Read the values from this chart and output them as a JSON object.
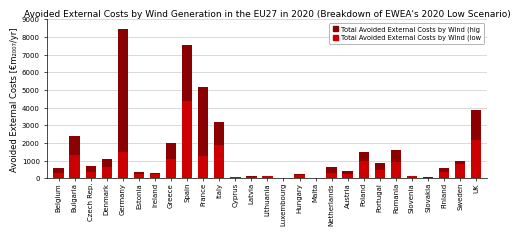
{
  "title": "Avoided External Costs by Wind Generation in the EU27 in 2020 (Breakdown of EWEA's 2020 Low Scenario)",
  "ylabel": "Avoided External Costs [€m₂₀₀₇/yr]",
  "countries": [
    "Belgium",
    "Bulgaria",
    "Czech Rep.",
    "Denmark",
    "Germany",
    "Estonia",
    "Ireland",
    "Greece",
    "Spain",
    "France",
    "Italy",
    "Cyprus",
    "Latvia",
    "Lithuania",
    "Luxembourg",
    "Hungary",
    "Malta",
    "Netherlands",
    "Austria",
    "Poland",
    "Portugal",
    "Romania",
    "Slovenia",
    "Slovakia",
    "Finland",
    "Sweden",
    "UK"
  ],
  "low_values": [
    300,
    1350,
    350,
    650,
    1500,
    250,
    270,
    1100,
    4400,
    1250,
    1900,
    70,
    80,
    120,
    15,
    200,
    10,
    300,
    270,
    1000,
    500,
    950,
    120,
    50,
    380,
    820,
    2200
  ],
  "high_values": [
    620,
    2380,
    680,
    1100,
    8450,
    390,
    310,
    2000,
    7550,
    5150,
    3200,
    100,
    120,
    150,
    20,
    250,
    20,
    650,
    430,
    1480,
    900,
    1620,
    160,
    80,
    620,
    970,
    3850
  ],
  "color_high": "#8B0000",
  "color_low": "#CC0000",
  "ylim": [
    0,
    9000
  ],
  "yticks": [
    0,
    1000,
    2000,
    3000,
    4000,
    5000,
    6000,
    7000,
    8000,
    9000
  ],
  "legend_high": "Total Avoided External Costs by Wind (hig",
  "legend_low": "Total Avoided External Costs by Wind (low",
  "background_color": "#ffffff",
  "plot_bg_color": "#ffffff",
  "grid_color": "#cccccc",
  "title_fontsize": 6.5,
  "axis_fontsize": 6.0,
  "tick_fontsize": 5.0,
  "bar_width": 0.65
}
